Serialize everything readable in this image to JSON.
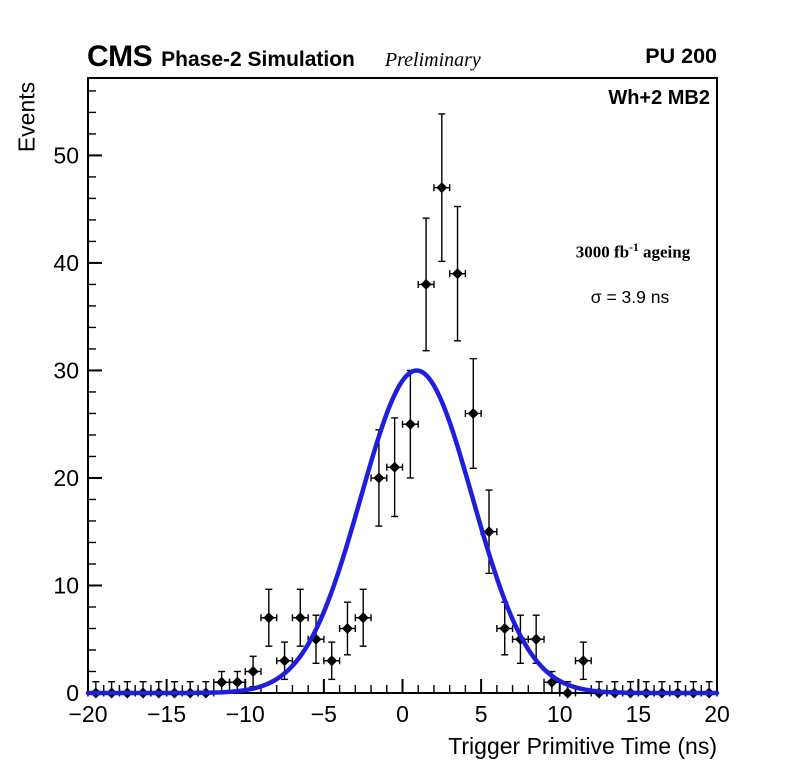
{
  "header": {
    "experiment": "CMS",
    "simulation_label": "Phase-2 Simulation",
    "preliminary_label": "Preliminary",
    "pileup_label": "PU 200"
  },
  "plot": {
    "region_label": "Wh+2 MB2",
    "lumi": {
      "prefix": "3000 fb",
      "sup": "-1",
      "suffix": " ageing"
    },
    "sigma_label": "σ = 3.9 ns"
  },
  "chart_data": {
    "type": "scatter",
    "title": "",
    "xlabel": "Trigger Primitive Time (ns)",
    "ylabel": "Events",
    "xlim": [
      -20,
      20
    ],
    "ylim": [
      0,
      57.2
    ],
    "grid": false,
    "legend": false,
    "x_tick_values": [
      -20,
      -15,
      -10,
      -5,
      0,
      5,
      10,
      15,
      20
    ],
    "x_tick_labels": [
      "−20",
      "−15",
      "−10",
      "−5",
      "0",
      "5",
      "10",
      "15",
      "20"
    ],
    "x_minor_tick_step": 1,
    "y_tick_values": [
      0,
      10,
      20,
      30,
      40,
      50
    ],
    "y_tick_labels": [
      "0",
      "10",
      "20",
      "30",
      "40",
      "50"
    ],
    "y_minor_tick_step": 2,
    "bin_width": 1,
    "marker": "filled-diamond",
    "marker_color": "#000000",
    "error_mode": "sqrt(N)",
    "zero_bin_upper_error": 1.05,
    "points": {
      "x": [
        -19.5,
        -18.5,
        -17.5,
        -16.5,
        -15.5,
        -14.5,
        -13.5,
        -12.5,
        -11.5,
        -10.5,
        -9.5,
        -8.5,
        -7.5,
        -6.5,
        -5.5,
        -4.5,
        -3.5,
        -2.5,
        -1.5,
        -0.5,
        0.5,
        1.5,
        2.5,
        3.5,
        4.5,
        5.5,
        6.5,
        7.5,
        8.5,
        9.5,
        10.5,
        11.5,
        12.5,
        13.5,
        14.5,
        15.5,
        16.5,
        17.5,
        18.5,
        19.5
      ],
      "y": [
        0,
        0,
        0,
        0,
        0,
        0,
        0,
        0,
        1,
        1,
        2,
        7,
        3,
        7,
        5,
        3,
        6,
        7,
        20,
        21,
        25,
        38,
        47,
        39,
        26,
        15,
        6,
        5,
        5,
        1,
        0,
        3,
        0,
        0,
        0,
        0,
        0,
        0,
        0,
        0
      ]
    },
    "fit": {
      "type": "gaussian",
      "amplitude": 30,
      "mean": 0.9,
      "sigma": 3.55,
      "sigma_quoted_ns": 3.9,
      "color": "#1e1edc",
      "line_width": 4.5
    }
  }
}
